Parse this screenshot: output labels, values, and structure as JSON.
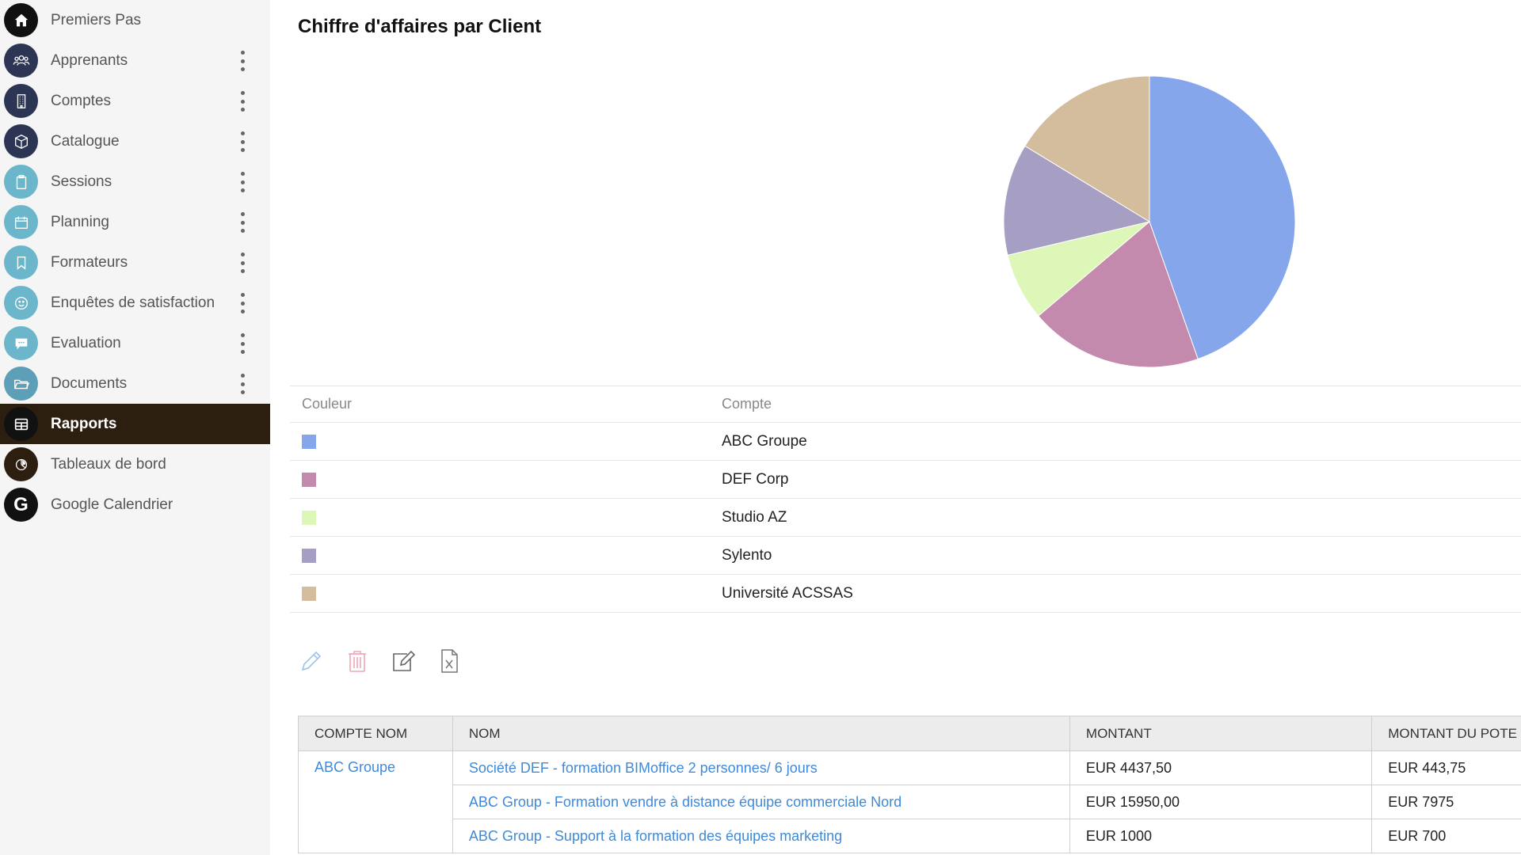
{
  "sidebar": {
    "items": [
      {
        "label": "Premiers Pas",
        "icon": "home-icon",
        "menu": false
      },
      {
        "label": "Apprenants",
        "icon": "users-icon",
        "menu": true
      },
      {
        "label": "Comptes",
        "icon": "building-icon",
        "menu": true
      },
      {
        "label": "Catalogue",
        "icon": "box-icon",
        "menu": true
      },
      {
        "label": "Sessions",
        "icon": "clipboard-icon",
        "menu": true
      },
      {
        "label": "Planning",
        "icon": "calendar-icon",
        "menu": true
      },
      {
        "label": "Formateurs",
        "icon": "bookmark-icon",
        "menu": true
      },
      {
        "label": "Enquêtes de satisfaction",
        "icon": "smiley-icon",
        "menu": true
      },
      {
        "label": "Evaluation",
        "icon": "chat-icon",
        "menu": true
      },
      {
        "label": "Documents",
        "icon": "folder-icon",
        "menu": true
      },
      {
        "label": "Rapports",
        "icon": "table-icon",
        "menu": false,
        "active": true
      },
      {
        "label": "Tableaux de bord",
        "icon": "dashboard-icon",
        "menu": false
      },
      {
        "label": "Google Calendrier",
        "icon": "google-icon",
        "menu": false
      }
    ]
  },
  "report": {
    "title": "Chiffre d'affaires par Client"
  },
  "chart_data": {
    "type": "pie",
    "title": "Chiffre d'affaires par Client",
    "slices": [
      {
        "label": "ABC Groupe",
        "value": 44.6,
        "color": "#86a6ec"
      },
      {
        "label": "DEF Corp",
        "value": 19.2,
        "color": "#c48aae"
      },
      {
        "label": "Studio AZ",
        "value": 7.5,
        "color": "#dcf7b8"
      },
      {
        "label": "Sylento",
        "value": 12.4,
        "color": "#a79fc3"
      },
      {
        "label": "Université ACSSAS",
        "value": 16.3,
        "color": "#d3bd9d"
      }
    ]
  },
  "legend": {
    "header_color": "Couleur",
    "header_account": "Compte",
    "rows": [
      {
        "name": "ABC Groupe",
        "color": "#86a6ec"
      },
      {
        "name": "DEF Corp",
        "color": "#c48aae"
      },
      {
        "name": "Studio AZ",
        "color": "#dcf7b8"
      },
      {
        "name": "Sylento",
        "color": "#a79fc3"
      },
      {
        "name": "Université ACSSAS",
        "color": "#d3bd9d"
      }
    ]
  },
  "toolbar": {
    "icons": [
      "pencil-icon",
      "trash-icon",
      "edit-icon",
      "excel-export-icon"
    ]
  },
  "table": {
    "headers": [
      "COMPTE NOM",
      "NOM",
      "MONTANT",
      "MONTANT DU POTE"
    ],
    "rows": [
      {
        "compte": "ABC Groupe",
        "nom": "Société DEF - formation BIMoffice 2 personnes/ 6 jours",
        "montant": "EUR 4437,50",
        "potentiel": "EUR 443,75"
      },
      {
        "compte": "",
        "nom": "ABC Group - Formation vendre à distance équipe commerciale Nord",
        "montant": "EUR 15950,00",
        "potentiel": "EUR 7975"
      },
      {
        "compte": "",
        "nom": "ABC Group - Support à la formation des équipes marketing",
        "montant": "EUR 1000",
        "potentiel": "EUR 700"
      }
    ]
  }
}
